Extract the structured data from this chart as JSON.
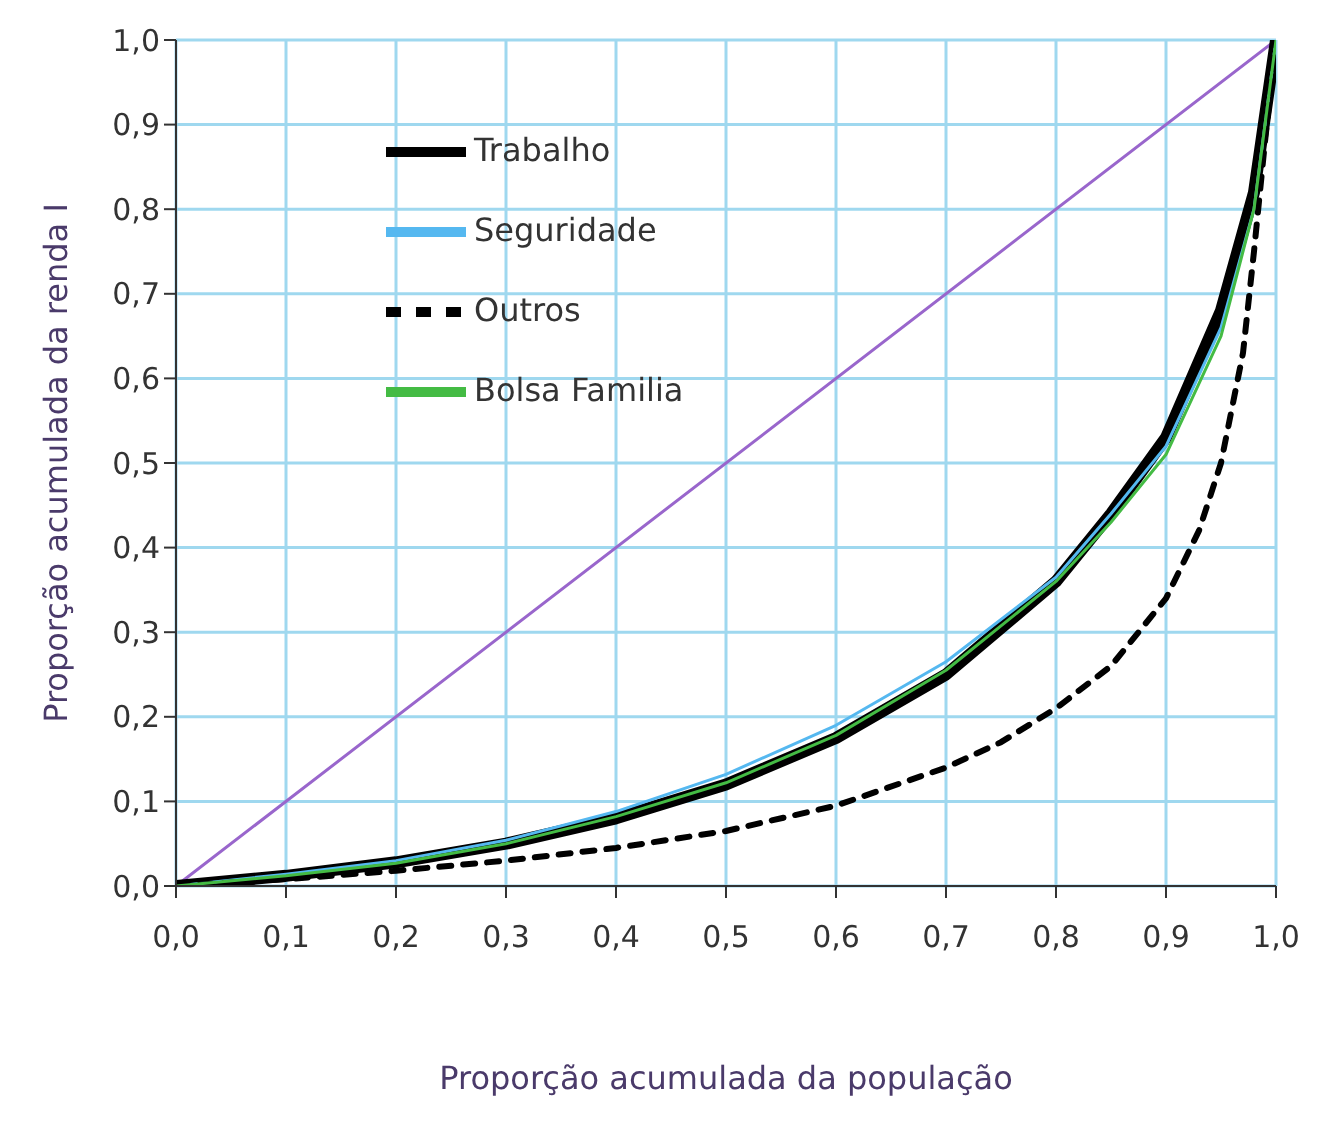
{
  "chart_data": {
    "type": "line",
    "xlabel": "Proporção acumulada da população",
    "ylabel": "Proporção acumulada da renda I",
    "xlim": [
      0,
      1
    ],
    "ylim": [
      0,
      1
    ],
    "xticks": [
      {
        "value": 0,
        "label": "0,0"
      },
      {
        "value": 0.1,
        "label": "0,1"
      },
      {
        "value": 0.2,
        "label": "0,2"
      },
      {
        "value": 0.3,
        "label": "0,3"
      },
      {
        "value": 0.4,
        "label": "0,4"
      },
      {
        "value": 0.5,
        "label": "0,5"
      },
      {
        "value": 0.6,
        "label": "0,6"
      },
      {
        "value": 0.7,
        "label": "0,7"
      },
      {
        "value": 0.8,
        "label": "0,8"
      },
      {
        "value": 0.9,
        "label": "0,9"
      },
      {
        "value": 1,
        "label": "1,0"
      }
    ],
    "yticks": [
      {
        "value": 0,
        "label": "0,0"
      },
      {
        "value": 0.1,
        "label": "0,1"
      },
      {
        "value": 0.2,
        "label": "0,2"
      },
      {
        "value": 0.3,
        "label": "0,3"
      },
      {
        "value": 0.4,
        "label": "0,4"
      },
      {
        "value": 0.5,
        "label": "0,5"
      },
      {
        "value": 0.6,
        "label": "0,6"
      },
      {
        "value": 0.7,
        "label": "0,7"
      },
      {
        "value": 0.8,
        "label": "0,8"
      },
      {
        "value": 0.9,
        "label": "0,9"
      },
      {
        "value": 1,
        "label": "1,0"
      }
    ],
    "grid": true,
    "legend": "top left",
    "marker": "none",
    "series": [
      {
        "color": "#9966cc",
        "line_style": "solid",
        "x": [
          0,
          1
        ],
        "values": [
          0,
          1
        ]
      },
      {
        "name": "Trabalho",
        "color": "#000000",
        "line_style": "solid",
        "x": [
          0,
          0.1,
          0.2,
          0.3,
          0.4,
          0.5,
          0.6,
          0.7,
          0.8,
          0.85,
          0.9,
          0.95,
          0.98,
          1
        ],
        "values": [
          0,
          0.012,
          0.028,
          0.05,
          0.08,
          0.12,
          0.175,
          0.25,
          0.36,
          0.44,
          0.53,
          0.68,
          0.82,
          1
        ]
      },
      {
        "name": "Seguridade",
        "color": "#55b8f0",
        "line_style": "solid",
        "x": [
          0,
          0.1,
          0.2,
          0.3,
          0.4,
          0.5,
          0.6,
          0.7,
          0.8,
          0.85,
          0.9,
          0.95,
          0.98,
          1
        ],
        "values": [
          0,
          0.014,
          0.03,
          0.054,
          0.088,
          0.132,
          0.19,
          0.265,
          0.365,
          0.44,
          0.52,
          0.66,
          0.8,
          1
        ]
      },
      {
        "name": "Outros",
        "color": "#000000",
        "line_style": "dashed",
        "x": [
          0,
          0.1,
          0.2,
          0.3,
          0.4,
          0.5,
          0.6,
          0.7,
          0.75,
          0.8,
          0.85,
          0.9,
          0.93,
          0.95,
          0.97,
          0.98,
          0.99,
          1
        ],
        "values": [
          0,
          0.008,
          0.018,
          0.03,
          0.045,
          0.065,
          0.095,
          0.14,
          0.17,
          0.21,
          0.26,
          0.34,
          0.42,
          0.5,
          0.63,
          0.75,
          0.88,
          1
        ]
      },
      {
        "name": "Bolsa Familia",
        "color": "#44bb44",
        "line_style": "solid",
        "x": [
          0,
          0.1,
          0.2,
          0.3,
          0.4,
          0.5,
          0.6,
          0.7,
          0.8,
          0.85,
          0.9,
          0.95,
          0.98,
          1
        ],
        "values": [
          0,
          0.012,
          0.027,
          0.05,
          0.082,
          0.122,
          0.178,
          0.255,
          0.36,
          0.43,
          0.51,
          0.65,
          0.8,
          1
        ]
      }
    ]
  }
}
